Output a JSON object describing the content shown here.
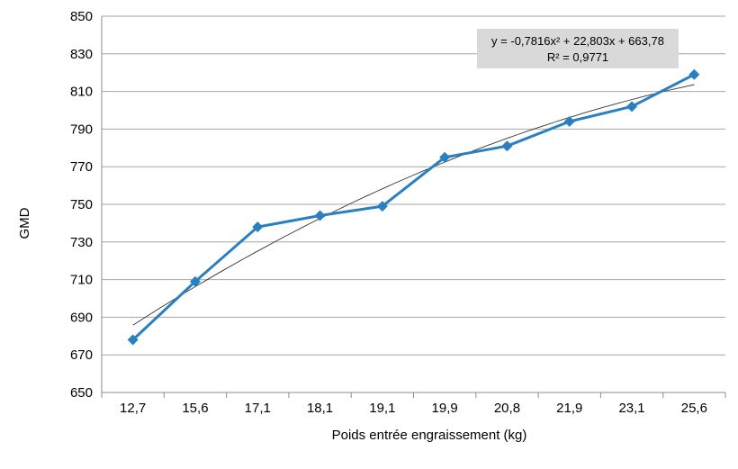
{
  "chart_data": {
    "type": "line",
    "title": "",
    "xlabel": "Poids entrée engraissement (kg)",
    "ylabel": "GMD",
    "categories": [
      "12,7",
      "15,6",
      "17,1",
      "18,1",
      "19,1",
      "19,9",
      "20,8",
      "21,9",
      "23,1",
      "25,6"
    ],
    "series": [
      {
        "values": [
          678,
          709,
          738,
          744,
          749,
          775,
          781,
          794,
          802,
          819
        ],
        "color": "#2A7FC1",
        "marker": "diamond"
      }
    ],
    "trendline": {
      "type": "polynomial",
      "order": 2,
      "color": "#333333",
      "equation": "y = -0,7816x² + 22,803x + 663,78",
      "r_squared": "R² = 0,9771",
      "coefficients": {
        "a": -0.7816,
        "b": 22.803,
        "c": 663.78
      }
    },
    "ylim": [
      650,
      850
    ],
    "yticks": [
      650,
      670,
      690,
      710,
      730,
      750,
      770,
      790,
      810,
      830,
      850
    ],
    "grid": true,
    "legend": "none"
  }
}
